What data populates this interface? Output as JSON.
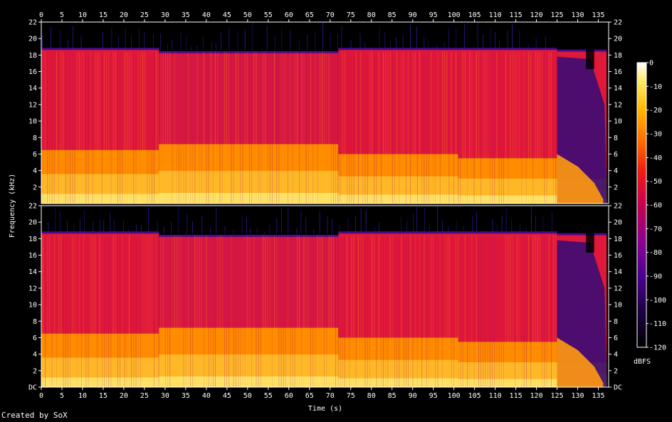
{
  "chart_data": {
    "type": "heatmap",
    "xlabel": "Time (s)",
    "ylabel": "Frequency (kHz)",
    "xlim": [
      0,
      137.5
    ],
    "ylim": [
      0,
      22
    ],
    "x_ticks": [
      "0",
      "5",
      "10",
      "15",
      "20",
      "25",
      "30",
      "35",
      "40",
      "45",
      "50",
      "55",
      "60",
      "65",
      "70",
      "75",
      "80",
      "85",
      "90",
      "95",
      "100",
      "105",
      "110",
      "115",
      "120",
      "125",
      "130",
      "135"
    ],
    "y_ticks": [
      "DC",
      "2",
      "4",
      "6",
      "8",
      "10",
      "12",
      "14",
      "16",
      "18",
      "20",
      "22"
    ],
    "channels": [
      "channel-1",
      "channel-2"
    ],
    "colorbar": {
      "label": "dBFS",
      "ticks": [
        "0",
        "-10",
        "-20",
        "-30",
        "-40",
        "-50",
        "-60",
        "-70",
        "-80",
        "-90",
        "-100",
        "-110",
        "-120"
      ],
      "range": [
        -120,
        0
      ],
      "colors": [
        "#000000",
        "#1a0040",
        "#4a008f",
        "#8a0090",
        "#c80050",
        "#f01c10",
        "#ff6a00",
        "#ffb400",
        "#ffe860",
        "#ffffff"
      ]
    },
    "regions": [
      {
        "t_start": 0,
        "t_end": 28.5,
        "lowpass_khz": 18.7,
        "band_high_khz": 6.5
      },
      {
        "t_start": 28.5,
        "t_end": 72,
        "lowpass_khz": 18.3,
        "band_high_khz": 7.2
      },
      {
        "t_start": 72,
        "t_end": 101,
        "lowpass_khz": 18.7,
        "band_high_khz": 6.0
      },
      {
        "t_start": 101,
        "t_end": 125,
        "lowpass_khz": 18.7,
        "band_high_khz": 5.5
      },
      {
        "t_start": 125,
        "t_end": 137,
        "lowpass_khz": 18.5,
        "band_high_khz": 3.0
      }
    ]
  },
  "footer": {
    "credit": "Created by SoX"
  }
}
